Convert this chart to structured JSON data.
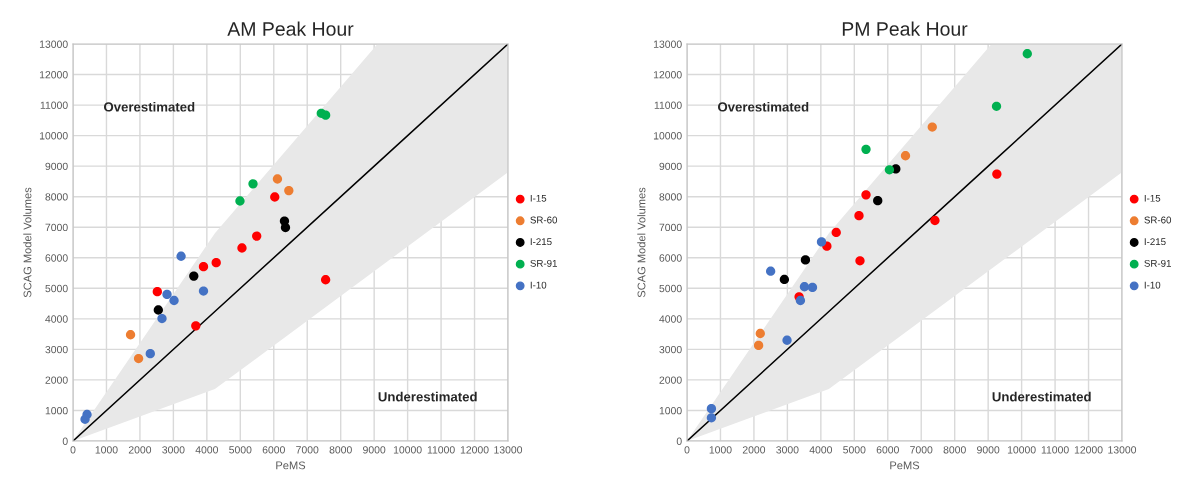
{
  "chart_data": [
    {
      "type": "scatter",
      "title": "AM Peak Hour",
      "xlabel": "PeMS",
      "ylabel": "SCAG Model Volumes",
      "xlim": [
        0,
        13000
      ],
      "ylim": [
        0,
        13000
      ],
      "xticks": [
        0,
        1000,
        2000,
        3000,
        4000,
        5000,
        6000,
        7000,
        8000,
        9000,
        10000,
        11000,
        12000,
        13000
      ],
      "yticks": [
        0,
        1000,
        2000,
        3000,
        4000,
        5000,
        6000,
        7000,
        8000,
        9000,
        10000,
        11000,
        12000,
        13000
      ],
      "grid": true,
      "legend": "right",
      "marker": "circle",
      "annotations": [
        "Overestimated",
        "Underestimated"
      ],
      "series": [
        {
          "type": "line",
          "marker": "none",
          "color": "#000000",
          "x": [
            0,
            4240,
            9100,
            13000
          ],
          "values": [
            0,
            4240,
            9100,
            13000
          ],
          "lower": [
            0,
            1700,
            5640,
            8800
          ],
          "upper": [
            0,
            6800,
            13000,
            13000
          ]
        },
        {
          "name": "I-15",
          "color": "#ff0000",
          "x": [
            2520,
            3670,
            3900,
            4280,
            5050,
            5490,
            6030,
            7550
          ],
          "values": [
            4890,
            3770,
            5710,
            5840,
            6320,
            6710,
            7990,
            5280
          ]
        },
        {
          "name": "SR-60",
          "color": "#ed7d31",
          "x": [
            1720,
            1960,
            6110,
            6450
          ],
          "values": [
            3480,
            2700,
            8580,
            8200
          ]
        },
        {
          "name": "I-215",
          "color": "#000000",
          "x": [
            2550,
            3610,
            6320,
            6350
          ],
          "values": [
            4290,
            5400,
            7200,
            6990
          ]
        },
        {
          "name": "SR-91",
          "color": "#00b050",
          "x": [
            4990,
            5380,
            7420,
            7550
          ],
          "values": [
            7860,
            8420,
            10730,
            10670
          ]
        },
        {
          "name": "I-10",
          "color": "#4472c4",
          "x": [
            420,
            360,
            3230,
            2810,
            3020,
            2660,
            2310,
            3900
          ],
          "values": [
            870,
            710,
            6050,
            4800,
            4600,
            4010,
            2860,
            4910
          ]
        }
      ]
    },
    {
      "type": "scatter",
      "title": "PM Peak Hour",
      "xlabel": "PeMS",
      "ylabel": "SCAG Model Volumes",
      "xlim": [
        0,
        13000
      ],
      "ylim": [
        0,
        13000
      ],
      "xticks": [
        0,
        1000,
        2000,
        3000,
        4000,
        5000,
        6000,
        7000,
        8000,
        9000,
        10000,
        11000,
        12000,
        13000
      ],
      "yticks": [
        0,
        1000,
        2000,
        3000,
        4000,
        5000,
        6000,
        7000,
        8000,
        9000,
        10000,
        11000,
        12000,
        13000
      ],
      "grid": true,
      "legend": "right",
      "marker": "circle",
      "annotations": [
        "Overestimated",
        "Underestimated"
      ],
      "series": [
        {
          "type": "line",
          "marker": "none",
          "color": "#000000",
          "x": [
            0,
            4240,
            9100,
            13000
          ],
          "values": [
            0,
            4240,
            9100,
            13000
          ],
          "lower": [
            0,
            1700,
            5640,
            8800
          ],
          "upper": [
            0,
            6800,
            13000,
            13000
          ]
        },
        {
          "name": "I-15",
          "color": "#ff0000",
          "x": [
            3350,
            4180,
            4460,
            5140,
            5350,
            5170,
            7410,
            9260
          ],
          "values": [
            4720,
            6380,
            6830,
            7380,
            8060,
            5900,
            7220,
            8740
          ]
        },
        {
          "name": "SR-60",
          "color": "#ed7d31",
          "x": [
            2190,
            2140,
            6530,
            7330
          ],
          "values": [
            3520,
            3130,
            9340,
            10280
          ]
        },
        {
          "name": "I-215",
          "color": "#000000",
          "x": [
            2910,
            3540,
            5700,
            6240
          ],
          "values": [
            5290,
            5930,
            7870,
            8910
          ]
        },
        {
          "name": "SR-91",
          "color": "#00b050",
          "x": [
            5350,
            6050,
            9250,
            10170
          ],
          "values": [
            9550,
            8880,
            10960,
            12680
          ]
        },
        {
          "name": "I-10",
          "color": "#4472c4",
          "x": [
            730,
            730,
            2990,
            3390,
            3510,
            3750,
            2500,
            4020
          ],
          "values": [
            1060,
            760,
            3300,
            4600,
            5050,
            5030,
            5560,
            6520
          ]
        }
      ]
    }
  ]
}
